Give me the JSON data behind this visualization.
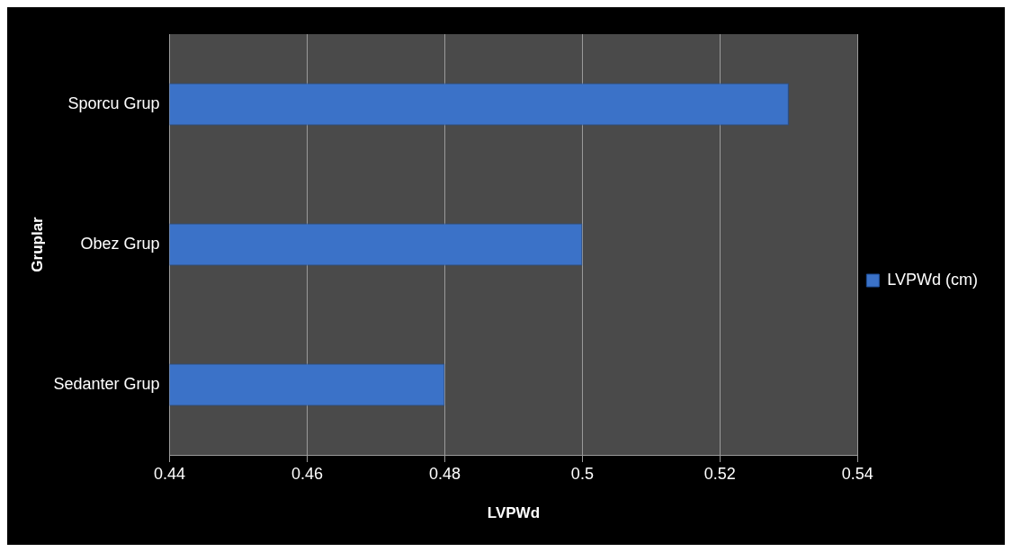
{
  "chart_data": {
    "type": "bar",
    "orientation": "horizontal",
    "categories": [
      "Sporcu Grup",
      "Obez Grup",
      "Sedanter Grup"
    ],
    "series": [
      {
        "name": "LVPWd (cm)",
        "color": "#3b72c8",
        "values": [
          0.53,
          0.5,
          0.48
        ]
      }
    ],
    "xlabel": "LVPWd",
    "ylabel": "Gruplar",
    "xlim": [
      0.44,
      0.54
    ],
    "xticks": [
      0.44,
      0.46,
      0.48,
      0.5,
      0.52,
      0.54
    ],
    "grid": "x",
    "legend": "right"
  }
}
